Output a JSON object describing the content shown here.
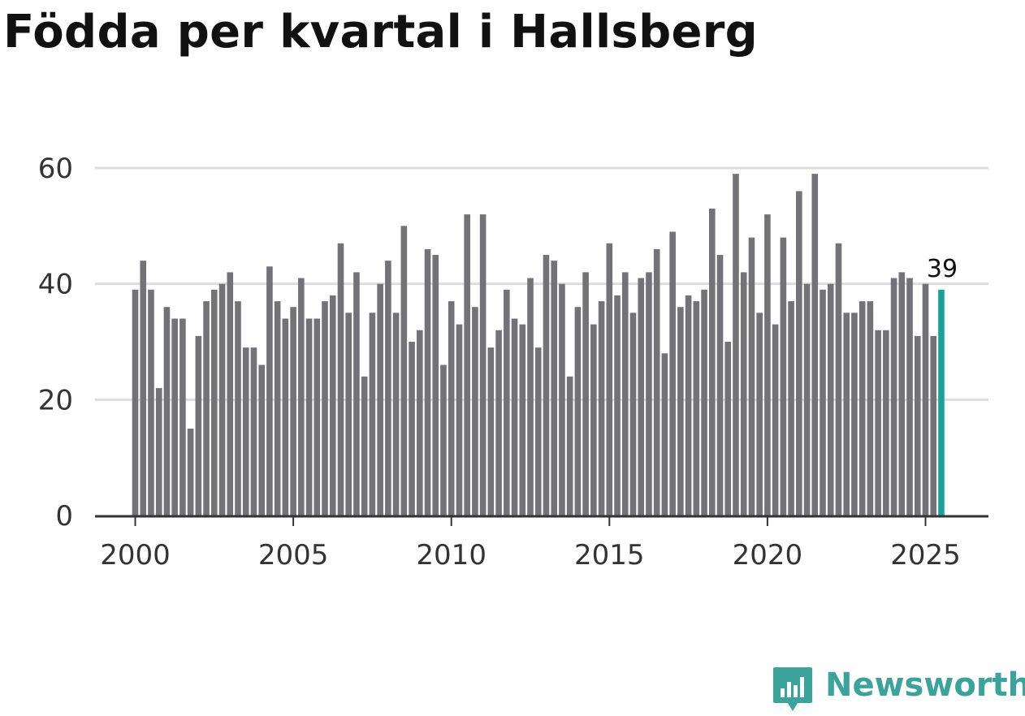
{
  "colors": {
    "bar": "#737276",
    "highlight": "#19a298",
    "grid": "#dddddd",
    "axis": "#333333",
    "tick_text": "#333333",
    "title": "#111111",
    "brand": "#3aa39a"
  },
  "brand": {
    "name": "Newsworthy",
    "icon": "newsworthy-logo-icon"
  },
  "chart_data": {
    "type": "bar",
    "title": "Födda per kvartal i Hallsberg",
    "xlabel": "",
    "ylabel": "",
    "ylim": [
      0,
      60
    ],
    "yticks": [
      "0",
      "20",
      "40",
      "60"
    ],
    "xticks": [
      "2000",
      "2005",
      "2010",
      "2015",
      "2020",
      "2025"
    ],
    "grid": true,
    "start_year": 2000,
    "start_quarter": 1,
    "highlight_last": true,
    "last_value_label": "39",
    "series": [
      {
        "name": "Födda",
        "values": [
          39,
          44,
          39,
          22,
          36,
          34,
          34,
          15,
          31,
          37,
          39,
          40,
          42,
          37,
          29,
          29,
          26,
          43,
          37,
          34,
          36,
          41,
          34,
          34,
          37,
          38,
          47,
          35,
          42,
          24,
          35,
          40,
          44,
          35,
          50,
          30,
          32,
          46,
          45,
          26,
          37,
          33,
          52,
          36,
          52,
          29,
          32,
          39,
          34,
          33,
          41,
          29,
          45,
          44,
          40,
          24,
          36,
          42,
          33,
          37,
          47,
          38,
          42,
          35,
          41,
          42,
          46,
          28,
          49,
          36,
          38,
          37,
          39,
          53,
          45,
          30,
          59,
          42,
          48,
          35,
          52,
          33,
          48,
          37,
          56,
          40,
          59,
          39,
          40,
          47,
          35,
          35,
          37,
          37,
          32,
          32,
          41,
          42,
          41,
          31,
          40,
          31,
          39
        ]
      }
    ]
  }
}
